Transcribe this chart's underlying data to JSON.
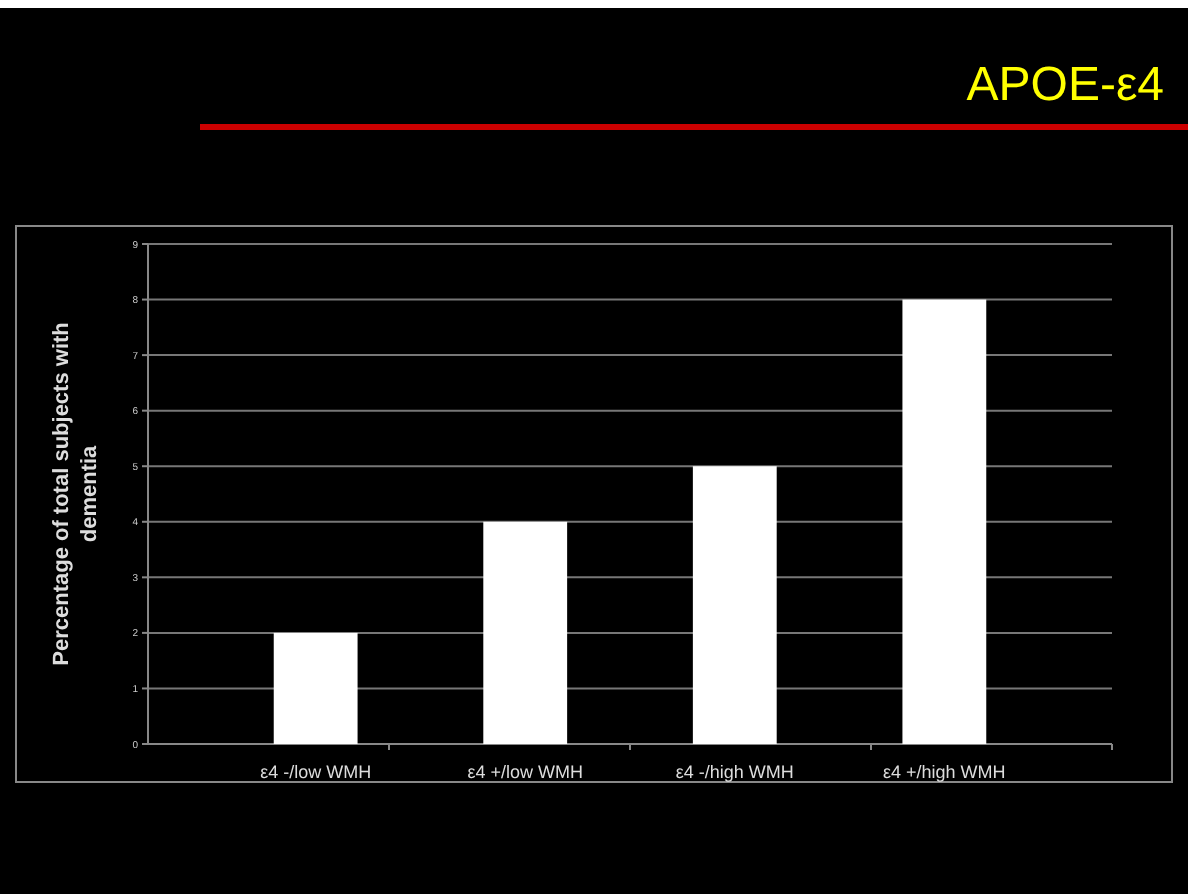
{
  "chart_data": {
    "type": "bar",
    "title": "APOE-ε4",
    "ylabel": "Percentage of total subjects with dementia",
    "categories": [
      "ε4 -/low WMH",
      "ε4 +/low WMH",
      "ε4 -/high WMH",
      "ε4 +/high WMH"
    ],
    "values": [
      2,
      4,
      5,
      8
    ],
    "color": "#ffffff",
    "ylim": [
      0,
      9
    ],
    "yticks": [
      0,
      1,
      2,
      3,
      4,
      5,
      6,
      7,
      8,
      9
    ],
    "grid": "y"
  }
}
